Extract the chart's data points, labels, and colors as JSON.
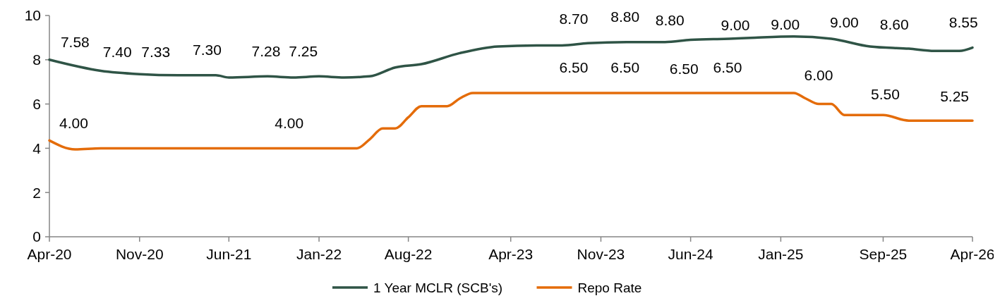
{
  "chart_data": {
    "type": "line",
    "xlim": [
      "2020-04",
      "2026-04"
    ],
    "ylim": [
      0,
      10
    ],
    "yticks": [
      0,
      2,
      4,
      6,
      8,
      10
    ],
    "xticks": [
      {
        "value": "2020-04",
        "label": "Apr-20"
      },
      {
        "value": "2020-11",
        "label": "Nov-20"
      },
      {
        "value": "2021-06",
        "label": "Jun-21"
      },
      {
        "value": "2022-01",
        "label": "Jan-22"
      },
      {
        "value": "2022-08",
        "label": "Aug-22"
      },
      {
        "value": "2023-04",
        "label": "Apr-23"
      },
      {
        "value": "2023-11",
        "label": "Nov-23"
      },
      {
        "value": "2024-06",
        "label": "Jun-24"
      },
      {
        "value": "2025-01",
        "label": "Jan-25"
      },
      {
        "value": "2025-09",
        "label": "Sep-25"
      },
      {
        "value": "2026-04",
        "label": "Apr-26"
      }
    ],
    "grid": false,
    "legend": "bottom",
    "marker": "none",
    "line_style": "solid",
    "series": [
      {
        "name": "1 Year MCLR (SCB's)",
        "color": "#2f5446",
        "x": [
          "2020-04",
          "2020-08",
          "2020-11",
          "2021-02",
          "2021-05",
          "2021-06",
          "2021-09",
          "2021-11",
          "2022-01",
          "2022-03",
          "2022-05",
          "2022-07",
          "2022-09",
          "2022-12",
          "2023-03",
          "2023-06",
          "2023-08",
          "2023-10",
          "2024-01",
          "2024-04",
          "2024-06",
          "2024-09",
          "2024-11",
          "2025-02",
          "2025-05",
          "2025-08",
          "2025-11",
          "2026-01",
          "2026-03",
          "2026-04"
        ],
        "values": [
          8.0,
          7.5,
          7.35,
          7.3,
          7.3,
          7.2,
          7.25,
          7.2,
          7.25,
          7.2,
          7.25,
          7.65,
          7.8,
          8.3,
          8.6,
          8.65,
          8.65,
          8.75,
          8.8,
          8.8,
          8.9,
          8.95,
          9.0,
          9.05,
          8.95,
          8.6,
          8.5,
          8.4,
          8.4,
          8.55
        ]
      },
      {
        "name": "Repo Rate",
        "color": "#e46c0a",
        "x": [
          "2020-04",
          "2020-06",
          "2020-08",
          "2022-04",
          "2022-05",
          "2022-06",
          "2022-07",
          "2022-08",
          "2022-09",
          "2022-11",
          "2022-12",
          "2023-01",
          "2025-02",
          "2025-03",
          "2025-04",
          "2025-05",
          "2025-06",
          "2025-09",
          "2025-11",
          "2026-04"
        ],
        "values": [
          4.35,
          3.95,
          4.0,
          4.0,
          4.4,
          4.9,
          4.9,
          5.4,
          5.9,
          5.9,
          6.25,
          6.5,
          6.5,
          6.25,
          6.0,
          6.0,
          5.5,
          5.5,
          5.25,
          5.25
        ]
      }
    ],
    "annotations": [
      "7.58",
      "7.40",
      "7.33",
      "7.30",
      "7.28",
      "7.25",
      "4.00",
      "4.00",
      "8.70",
      "8.80",
      "8.80",
      "9.00",
      "9.00",
      "9.00",
      "8.60",
      "8.55",
      "6.50",
      "6.50",
      "6.50",
      "6.50",
      "6.00",
      "5.50",
      "5.25"
    ]
  }
}
